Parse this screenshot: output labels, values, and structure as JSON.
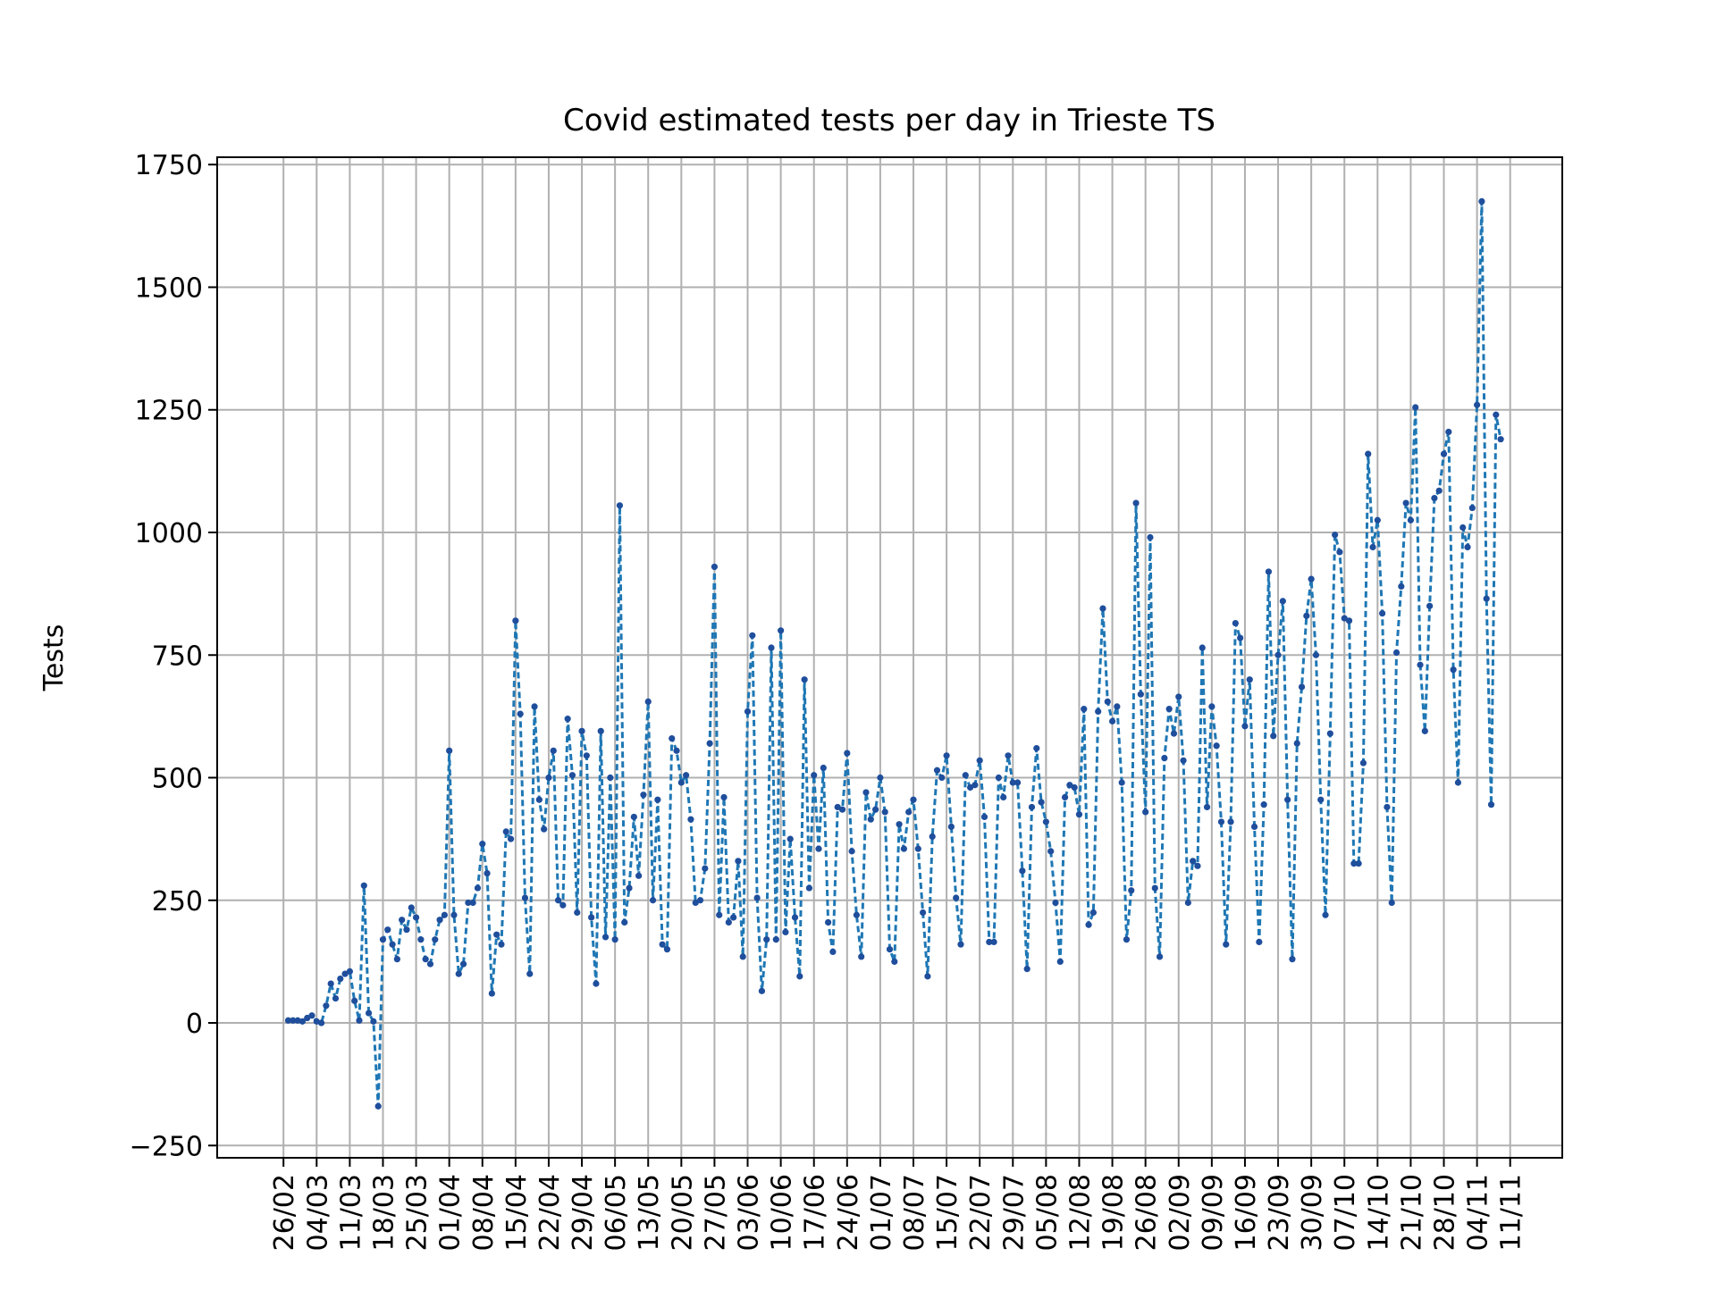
{
  "chart_data": {
    "type": "line",
    "title": "Covid estimated tests per day in Trieste TS",
    "xlabel": "",
    "ylabel": "Tests",
    "grid": true,
    "ylim": [
      -275,
      1765
    ],
    "y_ticks": [
      -250,
      0,
      250,
      500,
      750,
      1000,
      1250,
      1500,
      1750
    ],
    "y_tick_labels": [
      "−250",
      "0",
      "250",
      "500",
      "750",
      "1000",
      "1250",
      "1500",
      "1750"
    ],
    "x_start_offset": -1,
    "x_tick_step": 7,
    "x_tick_labels": [
      "26/02",
      "04/03",
      "11/03",
      "18/03",
      "25/03",
      "01/04",
      "08/04",
      "15/04",
      "22/04",
      "29/04",
      "06/05",
      "13/05",
      "20/05",
      "27/05",
      "03/06",
      "10/06",
      "17/06",
      "24/06",
      "01/07",
      "08/07",
      "15/07",
      "22/07",
      "29/07",
      "05/08",
      "12/08",
      "19/08",
      "26/08",
      "02/09",
      "09/09",
      "16/09",
      "23/09",
      "30/09",
      "07/10",
      "14/10",
      "21/10",
      "28/10",
      "04/11",
      "11/11"
    ],
    "x_range": [
      -15,
      269
    ],
    "line_color": "#1f77b4",
    "marker_color": "#1f4e9c",
    "series": [
      {
        "name": "Tests",
        "values": [
          5,
          5,
          5,
          3,
          10,
          15,
          3,
          0,
          35,
          80,
          50,
          90,
          100,
          105,
          45,
          5,
          280,
          20,
          3,
          -170,
          170,
          190,
          160,
          130,
          210,
          190,
          235,
          215,
          170,
          130,
          120,
          170,
          210,
          220,
          555,
          220,
          100,
          120,
          245,
          245,
          275,
          365,
          305,
          60,
          180,
          160,
          390,
          375,
          820,
          630,
          255,
          100,
          645,
          455,
          395,
          500,
          555,
          250,
          240,
          620,
          505,
          225,
          595,
          545,
          215,
          80,
          595,
          175,
          500,
          170,
          1055,
          205,
          275,
          420,
          300,
          465,
          655,
          250,
          455,
          160,
          150,
          580,
          555,
          490,
          505,
          415,
          245,
          250,
          315,
          570,
          930,
          220,
          460,
          205,
          215,
          330,
          135,
          635,
          790,
          255,
          65,
          170,
          765,
          170,
          800,
          185,
          375,
          215,
          95,
          700,
          275,
          505,
          355,
          520,
          205,
          145,
          440,
          435,
          550,
          350,
          220,
          135,
          470,
          415,
          435,
          500,
          430,
          150,
          125,
          405,
          355,
          430,
          455,
          355,
          225,
          95,
          380,
          515,
          500,
          545,
          400,
          255,
          160,
          505,
          480,
          485,
          535,
          420,
          165,
          165,
          500,
          460,
          545,
          490,
          490,
          310,
          110,
          440,
          560,
          450,
          410,
          350,
          245,
          125,
          460,
          485,
          480,
          425,
          640,
          200,
          225,
          635,
          845,
          655,
          615,
          645,
          490,
          170,
          270,
          1060,
          670,
          430,
          990,
          275,
          135,
          540,
          640,
          590,
          665,
          535,
          245,
          330,
          320,
          765,
          440,
          645,
          565,
          410,
          160,
          410,
          815,
          785,
          605,
          700,
          400,
          165,
          445,
          920,
          585,
          750,
          860,
          455,
          130,
          570,
          685,
          830,
          905,
          750,
          455,
          220,
          590,
          995,
          960,
          825,
          820,
          325,
          325,
          530,
          1160,
          970,
          1025,
          835,
          440,
          245,
          755,
          890,
          1060,
          1025,
          1255,
          730,
          595,
          850,
          1070,
          1085,
          1160,
          1205,
          720,
          490,
          1010,
          970,
          1050,
          1260,
          1675,
          865,
          445,
          1240,
          1190
        ]
      }
    ]
  }
}
